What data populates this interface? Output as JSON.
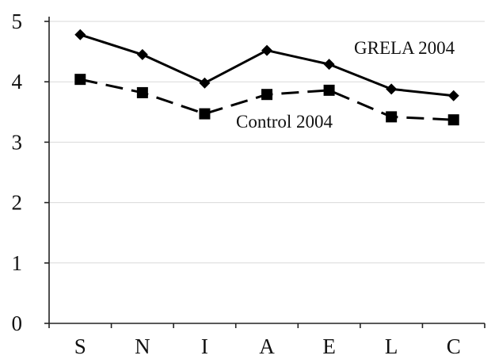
{
  "chart_data": {
    "type": "line",
    "title": "",
    "xlabel": "",
    "ylabel": "",
    "categories": [
      "S",
      "N",
      "I",
      "A",
      "E",
      "L",
      "C"
    ],
    "ylim": [
      0,
      5
    ],
    "yticks": [
      0,
      1,
      2,
      3,
      4,
      5
    ],
    "grid": true,
    "series": [
      {
        "name": "GRELA 2004",
        "values": [
          4.78,
          4.45,
          3.98,
          4.52,
          4.29,
          3.88,
          3.77
        ],
        "marker": "diamond",
        "line_style": "solid",
        "color": "#000000"
      },
      {
        "name": "Control 2004",
        "values": [
          4.04,
          3.82,
          3.47,
          3.79,
          3.86,
          3.42,
          3.37
        ],
        "marker": "square",
        "line_style": "dashed",
        "color": "#000000"
      }
    ]
  }
}
